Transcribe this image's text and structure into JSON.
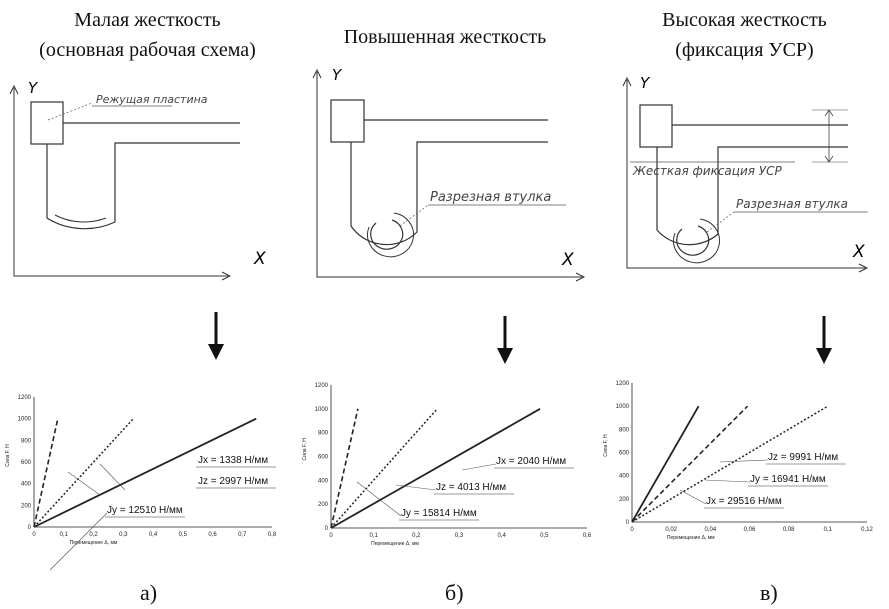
{
  "columns": [
    {
      "title_line1": "Малая жесткость",
      "title_line2": "(основная рабочая схема)",
      "sketch_axis_y": "Y",
      "sketch_axis_x": "X",
      "sketch_label1": "Режущая пластина",
      "sub_label": "а)"
    },
    {
      "title_line1": "Повышенная жесткость",
      "title_line2": "",
      "sketch_axis_y": "Y",
      "sketch_axis_x": "X",
      "sketch_label1": "Разрезная втулка",
      "sub_label": "б)"
    },
    {
      "title_line1": "Высокая жесткость",
      "title_line2": "(фиксация УСР)",
      "sketch_axis_y": "Y",
      "sketch_axis_x": "X",
      "sketch_label1": "Жесткая фиксация УСР",
      "sketch_label2": "Разрезная втулка",
      "sub_label": "в)"
    }
  ],
  "chart_data": [
    {
      "type": "line",
      "ylabel": "Сила F, Н",
      "xlabel": "Перемещение Δ, мм",
      "xlim": [
        0,
        0.8
      ],
      "ylim": [
        0,
        1200
      ],
      "xticks": [
        "0",
        "0,1",
        "0,2",
        "0,3",
        "0,4",
        "0,5",
        "0,6",
        "0,7",
        "0,8"
      ],
      "yticks": [
        "0",
        "200",
        "400",
        "600",
        "800",
        "1000",
        "1200"
      ],
      "series": [
        {
          "label": "Jx = 1338 Н/мм",
          "style": "solid",
          "x": [
            0,
            0.747
          ],
          "y": [
            0,
            1000
          ]
        },
        {
          "label": "Jz = 2997 Н/мм",
          "style": "dotted",
          "x": [
            0,
            0.334
          ],
          "y": [
            0,
            1000
          ]
        },
        {
          "label": "Jy = 12510 Н/мм",
          "style": "dashed",
          "x": [
            0,
            0.08
          ],
          "y": [
            0,
            1000
          ]
        }
      ]
    },
    {
      "type": "line",
      "ylabel": "Сила F, Н",
      "xlabel": "Перемещение Δ, мм",
      "xlim": [
        0,
        0.6
      ],
      "ylim": [
        0,
        1200
      ],
      "xticks": [
        "0",
        "0,1",
        "0,2",
        "0,3",
        "0,4",
        "0,5",
        "0,6"
      ],
      "yticks": [
        "0",
        "200",
        "400",
        "600",
        "800",
        "1000",
        "1200"
      ],
      "series": [
        {
          "label": "Jx = 2040 Н/мм",
          "style": "solid",
          "x": [
            0,
            0.49
          ],
          "y": [
            0,
            1000
          ]
        },
        {
          "label": "Jz = 4013 Н/мм",
          "style": "dotted",
          "x": [
            0,
            0.249
          ],
          "y": [
            0,
            1000
          ]
        },
        {
          "label": "Jy = 15814 Н/мм",
          "style": "dashed",
          "x": [
            0,
            0.063
          ],
          "y": [
            0,
            1000
          ]
        }
      ]
    },
    {
      "type": "line",
      "ylabel": "Сила F, Н",
      "xlabel": "Перемещение Δ, мм",
      "xlim": [
        0,
        0.12
      ],
      "ylim": [
        0,
        1200
      ],
      "xticks": [
        "0",
        "0,02",
        "0,04",
        "0,06",
        "0,08",
        "0,1",
        "0,12"
      ],
      "yticks": [
        "0",
        "200",
        "400",
        "600",
        "800",
        "1000",
        "1200"
      ],
      "series": [
        {
          "label": "Jz = 9991 Н/мм",
          "style": "dotted",
          "x": [
            0,
            0.1
          ],
          "y": [
            0,
            1000
          ]
        },
        {
          "label": "Jy = 16941 Н/мм",
          "style": "dashed",
          "x": [
            0,
            0.059
          ],
          "y": [
            0,
            1000
          ]
        },
        {
          "label": "Jx = 29516 Н/мм",
          "style": "solid",
          "x": [
            0,
            0.034
          ],
          "y": [
            0,
            1000
          ]
        }
      ]
    }
  ]
}
